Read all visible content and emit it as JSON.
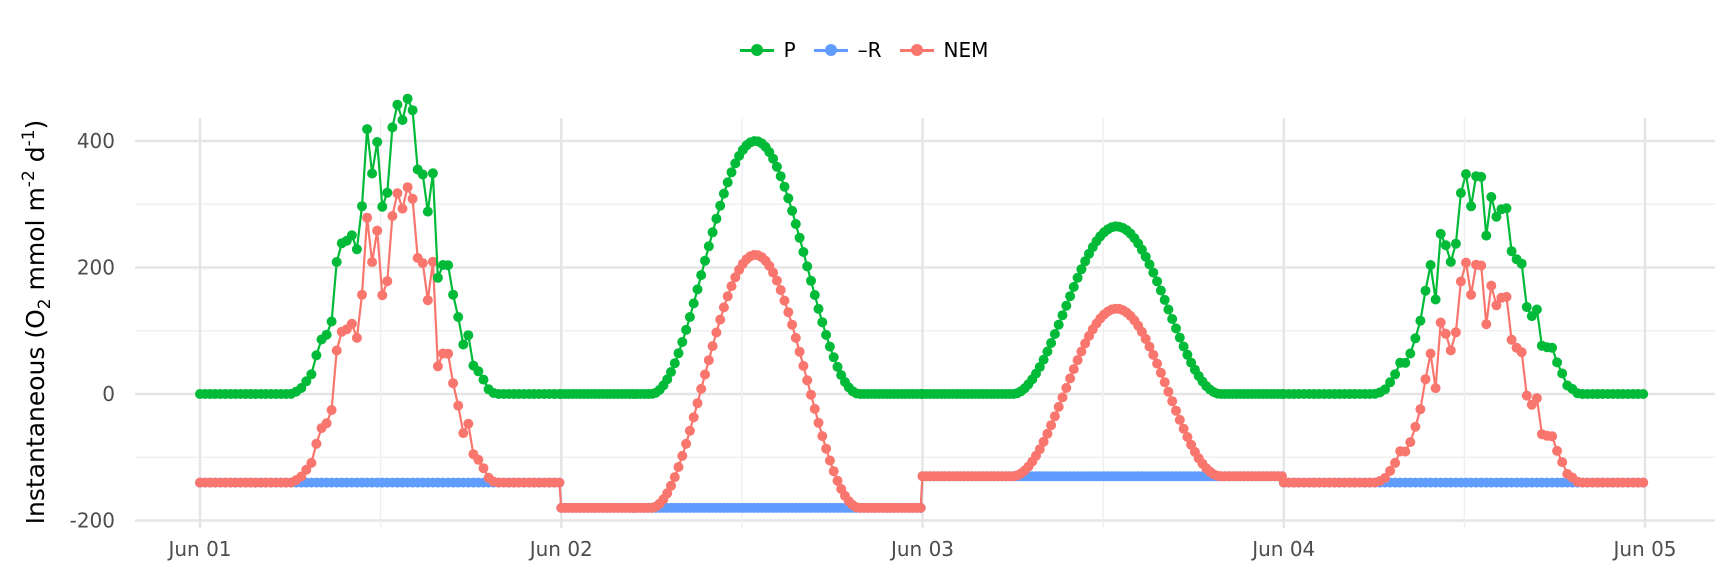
{
  "chart_data": {
    "type": "line",
    "ylabel_parts": {
      "pre": "Instantaneous (O",
      "sub2": "2",
      "mid": " mmol m",
      "sup2": "-2",
      "mid2": " d",
      "sup1": "-1",
      "post": ")"
    },
    "xlabel": "",
    "x_ticks": [
      "Jun 01",
      "Jun 02",
      "Jun 03",
      "Jun 04",
      "Jun 05"
    ],
    "y_ticks": [
      400,
      200,
      0,
      -200
    ],
    "ylim": [
      -200,
      400
    ],
    "xlim_days": [
      0,
      4
    ],
    "grid": true,
    "legend_position": "top",
    "colors": {
      "P": "#00BA38",
      "R": "#619CFF",
      "NEM": "#F8766D"
    },
    "legend": [
      {
        "key": "P",
        "label": "P"
      },
      {
        "key": "R",
        "label": "–R"
      },
      {
        "key": "NEM",
        "label": "NEM"
      }
    ],
    "days": [
      {
        "date": "Jun 01",
        "resp": -140,
        "peak": 400,
        "noisy": true
      },
      {
        "date": "Jun 02",
        "resp": -180,
        "peak": 400,
        "noisy": false
      },
      {
        "date": "Jun 03",
        "resp": -130,
        "peak": 265,
        "noisy": false
      },
      {
        "date": "Jun 04",
        "resp": -140,
        "peak": 315,
        "noisy": true
      }
    ],
    "sunrise_fraction": 0.25,
    "sunset_fraction": 0.83
  }
}
